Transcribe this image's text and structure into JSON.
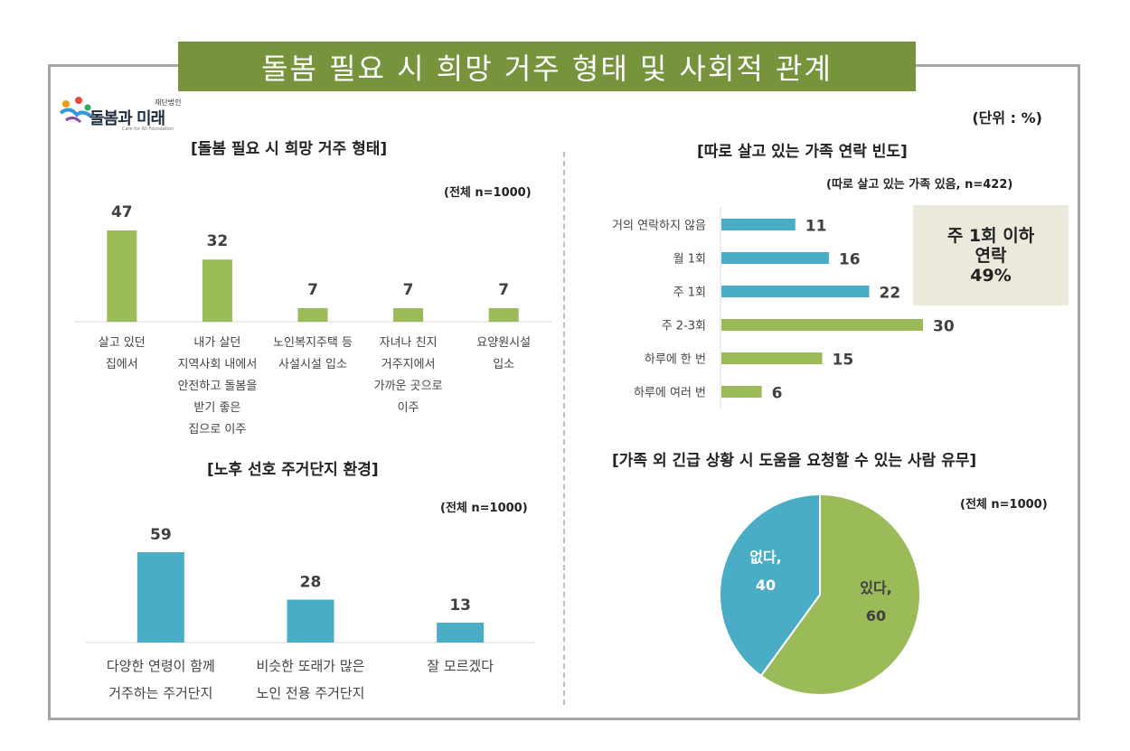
{
  "page": {
    "title": "돌봄 필요 시 희망 거주 형태 및 사회적 관계",
    "unit": "(단위 : %)",
    "logo": {
      "text": "돌봄과 미래",
      "sub": "재단법인",
      "en": "Care for All Foundation"
    }
  },
  "colors": {
    "green": "#9bbb59",
    "teal": "#4bacc6",
    "banner": "#77933c",
    "callout_bg": "#ebe8dc"
  },
  "chart_data": [
    {
      "type": "bar",
      "title": "[돌봄 필요 시 희망 거주 형태]",
      "note": "(전체 n=1000)",
      "categories": [
        "살고 있던\n집에서",
        "내가 살던\n지역사회 내에서\n안전하고 돌봄을\n받기 좋은\n집으로 이주",
        "노인복지주택 등\n사설시설 입소",
        "자녀나 친지\n거주지에서\n가까운 곳으로\n이주",
        "요양원시설\n입소"
      ],
      "values": [
        47,
        32,
        7,
        7,
        7
      ],
      "ylim": [
        0,
        60
      ],
      "color": "#9bbb59"
    },
    {
      "type": "bar",
      "title": "[노후 선호 주거단지 환경]",
      "note": "(전체 n=1000)",
      "categories": [
        "다양한 연령이 함께\n거주하는 주거단지",
        "비슷한 또래가 많은\n노인 전용 주거단지",
        "잘 모르겠다"
      ],
      "values": [
        59,
        28,
        13
      ],
      "ylim": [
        0,
        70
      ],
      "color": "#4bacc6"
    },
    {
      "type": "bar",
      "orientation": "horizontal",
      "title": "[따로 살고 있는 가족 연락 빈도]",
      "note": "(따로 살고 있는 가족 있음, n=422)",
      "categories": [
        "거의 연락하지 않음",
        "월 1회",
        "주 1회",
        "주 2-3회",
        "하루에 한 번",
        "하루에 여러 번"
      ],
      "values": [
        11,
        16,
        22,
        30,
        15,
        6
      ],
      "colors": [
        "#4bacc6",
        "#4bacc6",
        "#4bacc6",
        "#9bbb59",
        "#9bbb59",
        "#9bbb59"
      ],
      "xlim": [
        0,
        35
      ],
      "callout": {
        "line1": "주 1회 이하",
        "line2": "연락",
        "line3": "49%"
      }
    },
    {
      "type": "pie",
      "title": "[가족 외 긴급 상황 시 도움을 요청할 수 있는 사람 유무]",
      "note": "(전체 n=1000)",
      "slices": [
        {
          "label": "있다,",
          "value": 60,
          "color": "#9bbb59"
        },
        {
          "label": "없다,",
          "value": 40,
          "color": "#4bacc6"
        }
      ]
    }
  ]
}
